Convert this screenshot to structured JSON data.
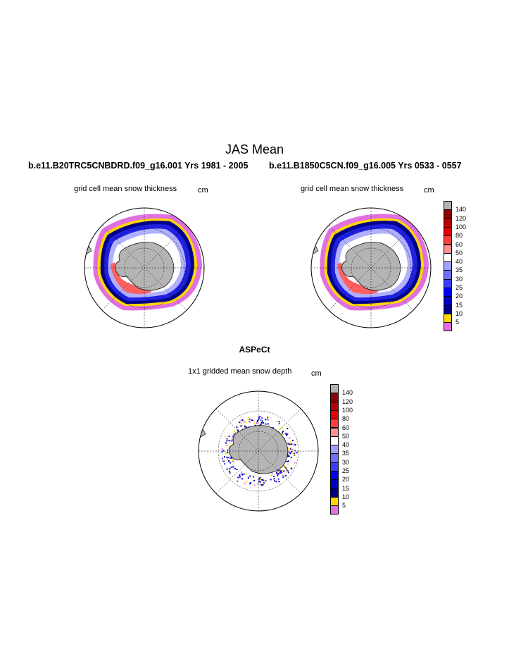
{
  "title": "JAS Mean",
  "panels": [
    {
      "case": "b.e11.B20TRC5CNBDRD.f09_g16.001  Yrs 1981 - 2005",
      "label": "grid cell mean snow thickness",
      "units": "cm"
    },
    {
      "case": "b.e11.B1850C5CN.f09_g16.005  Yrs 0533 - 0557",
      "label": "grid cell mean snow thickness",
      "units": "cm"
    }
  ],
  "obs": {
    "title": "ASPeCt",
    "label": "1x1 gridded mean snow depth",
    "units": "cm"
  },
  "colorbar": {
    "labels": [
      "140",
      "120",
      "100",
      "80",
      "60",
      "50",
      "40",
      "35",
      "30",
      "25",
      "20",
      "15",
      "10",
      "5"
    ],
    "colors": [
      "#b2b2b2",
      "#8b0000",
      "#b80000",
      "#e60000",
      "#ff3b3b",
      "#ff9090",
      "#ffffff",
      "#a0a0ff",
      "#6f6fff",
      "#3c3cff",
      "#0000f0",
      "#0000c0",
      "#00008b",
      "#ffd700",
      "#e070e0"
    ]
  }
}
